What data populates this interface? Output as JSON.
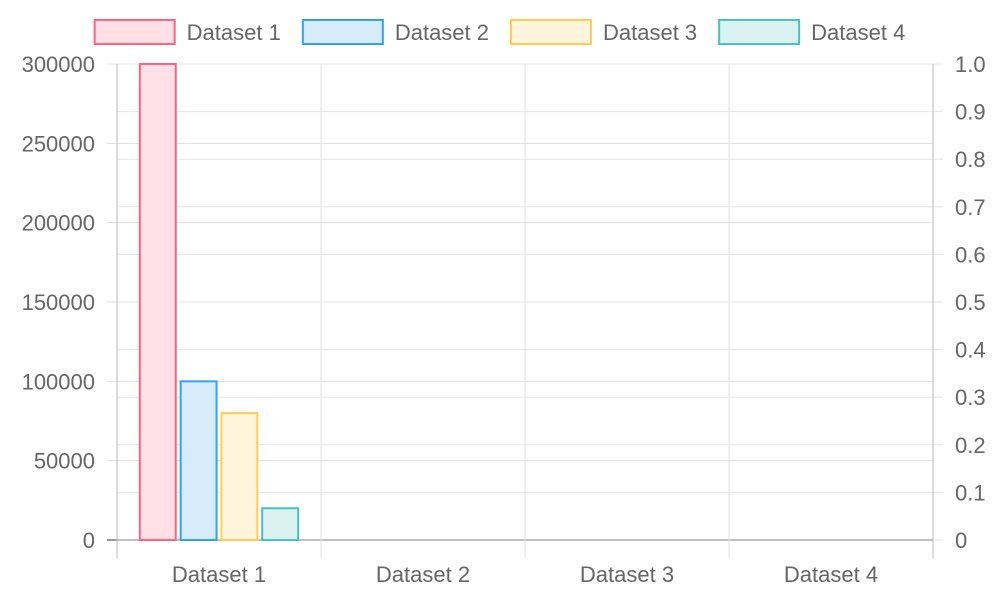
{
  "chart_data": {
    "type": "bar",
    "categories": [
      "Dataset 1",
      "Dataset 2",
      "Dataset 3",
      "Dataset 4"
    ],
    "series": [
      {
        "name": "Dataset 1",
        "values": [
          300000,
          0,
          0,
          0
        ],
        "color": "#ff6384",
        "fill": "#ffe0e6"
      },
      {
        "name": "Dataset 2",
        "values": [
          100000,
          0,
          0,
          0
        ],
        "color": "#36a2eb",
        "fill": "#d7ecfb"
      },
      {
        "name": "Dataset 3",
        "values": [
          80000,
          0,
          0,
          0
        ],
        "color": "#ffcd56",
        "fill": "#fff5dd"
      },
      {
        "name": "Dataset 4",
        "values": [
          20000,
          0,
          0,
          0
        ],
        "color": "#4bc0c0",
        "fill": "#dbf2f2"
      }
    ],
    "y_left": {
      "min": 0,
      "max": 300000,
      "ticks": [
        "0",
        "50000",
        "100000",
        "150000",
        "200000",
        "250000",
        "300000"
      ]
    },
    "y_right": {
      "min": 0,
      "max": 1.0,
      "ticks": [
        "0",
        "0.1",
        "0.2",
        "0.3",
        "0.4",
        "0.5",
        "0.6",
        "0.7",
        "0.8",
        "0.9",
        "1.0"
      ]
    },
    "legend_position": "top",
    "grid": true,
    "title": "",
    "xlabel": "",
    "ylabel": ""
  }
}
